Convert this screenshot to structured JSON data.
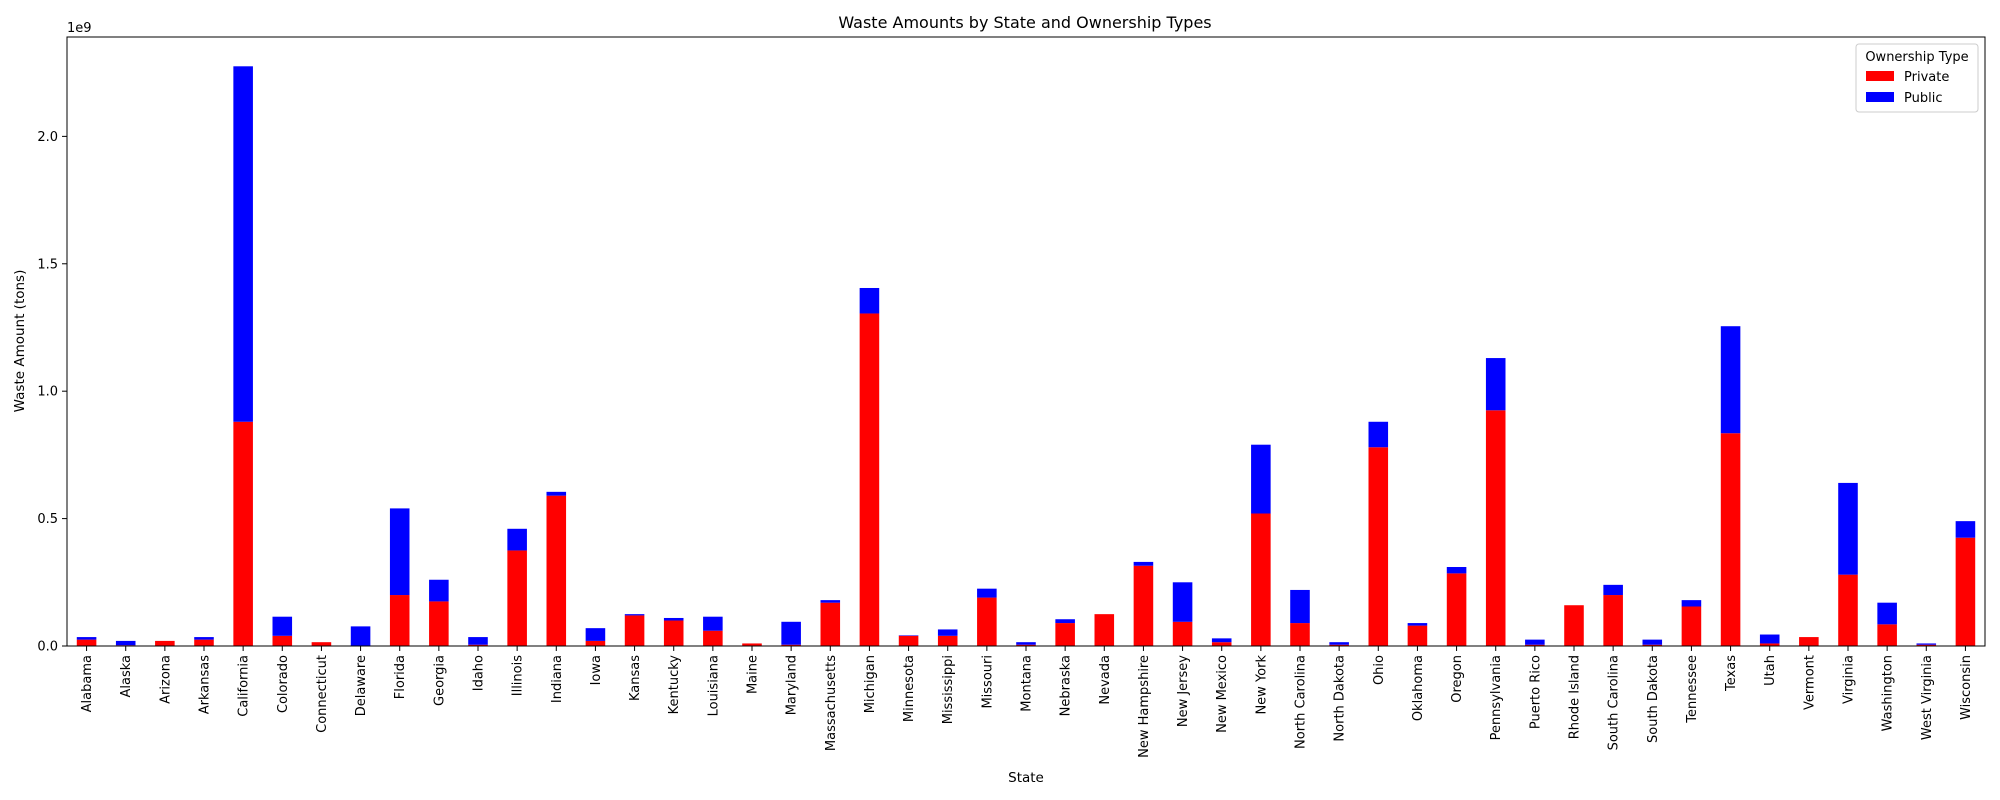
{
  "chart_data": {
    "type": "bar",
    "stacked": true,
    "title": "Waste Amounts by State and Ownership Types",
    "xlabel": "State",
    "ylabel": "Waste Amount (tons)",
    "y_offset_text": "1e9",
    "ylim": [
      0,
      2.39
    ],
    "yticks": [
      0.0,
      0.5,
      1.0,
      1.5,
      2.0
    ],
    "ytick_labels": [
      "0.0",
      "0.5",
      "1.0",
      "1.5",
      "2.0"
    ],
    "grid": false,
    "legend": {
      "title": "Ownership Type",
      "position": "top-right"
    },
    "categories": [
      "Alabama",
      "Alaska",
      "Arizona",
      "Arkansas",
      "California",
      "Colorado",
      "Connecticut",
      "Delaware",
      "Florida",
      "Georgia",
      "Idaho",
      "Illinois",
      "Indiana",
      "Iowa",
      "Kansas",
      "Kentucky",
      "Louisiana",
      "Maine",
      "Maryland",
      "Massachusetts",
      "Michigan",
      "Minnesota",
      "Mississippi",
      "Missouri",
      "Montana",
      "Nebraska",
      "Nevada",
      "New Hampshire",
      "New Jersey",
      "New Mexico",
      "New York",
      "North Carolina",
      "North Dakota",
      "Ohio",
      "Oklahoma",
      "Oregon",
      "Pennsylvania",
      "Puerto Rico",
      "Rhode Island",
      "South Carolina",
      "South Dakota",
      "Tennessee",
      "Texas",
      "Utah",
      "Vermont",
      "Virginia",
      "Washington",
      "West Virginia",
      "Wisconsin"
    ],
    "series": [
      {
        "name": "Private",
        "color": "#ff0000",
        "values": [
          0.025,
          0.003,
          0.02,
          0.025,
          0.88,
          0.04,
          0.015,
          0.002,
          0.2,
          0.175,
          0.005,
          0.375,
          0.59,
          0.02,
          0.12,
          0.1,
          0.06,
          0.01,
          0.005,
          0.17,
          1.305,
          0.04,
          0.04,
          0.19,
          0.005,
          0.09,
          0.125,
          0.315,
          0.095,
          0.015,
          0.52,
          0.09,
          0.005,
          0.78,
          0.08,
          0.285,
          0.925,
          0.005,
          0.16,
          0.2,
          0.005,
          0.155,
          0.835,
          0.01,
          0.035,
          0.28,
          0.085,
          0.005,
          0.425
        ]
      },
      {
        "name": "Public",
        "color": "#0000ff",
        "values": [
          0.01,
          0.017,
          0.0,
          0.01,
          1.395,
          0.075,
          0.0,
          0.075,
          0.34,
          0.085,
          0.03,
          0.085,
          0.015,
          0.05,
          0.005,
          0.01,
          0.055,
          0.0,
          0.09,
          0.01,
          0.1,
          0.002,
          0.025,
          0.035,
          0.01,
          0.015,
          0.0,
          0.015,
          0.155,
          0.015,
          0.27,
          0.13,
          0.01,
          0.1,
          0.01,
          0.025,
          0.205,
          0.02,
          0.0,
          0.04,
          0.02,
          0.025,
          0.42,
          0.035,
          0.0,
          0.36,
          0.085,
          0.005,
          0.065
        ]
      }
    ]
  }
}
